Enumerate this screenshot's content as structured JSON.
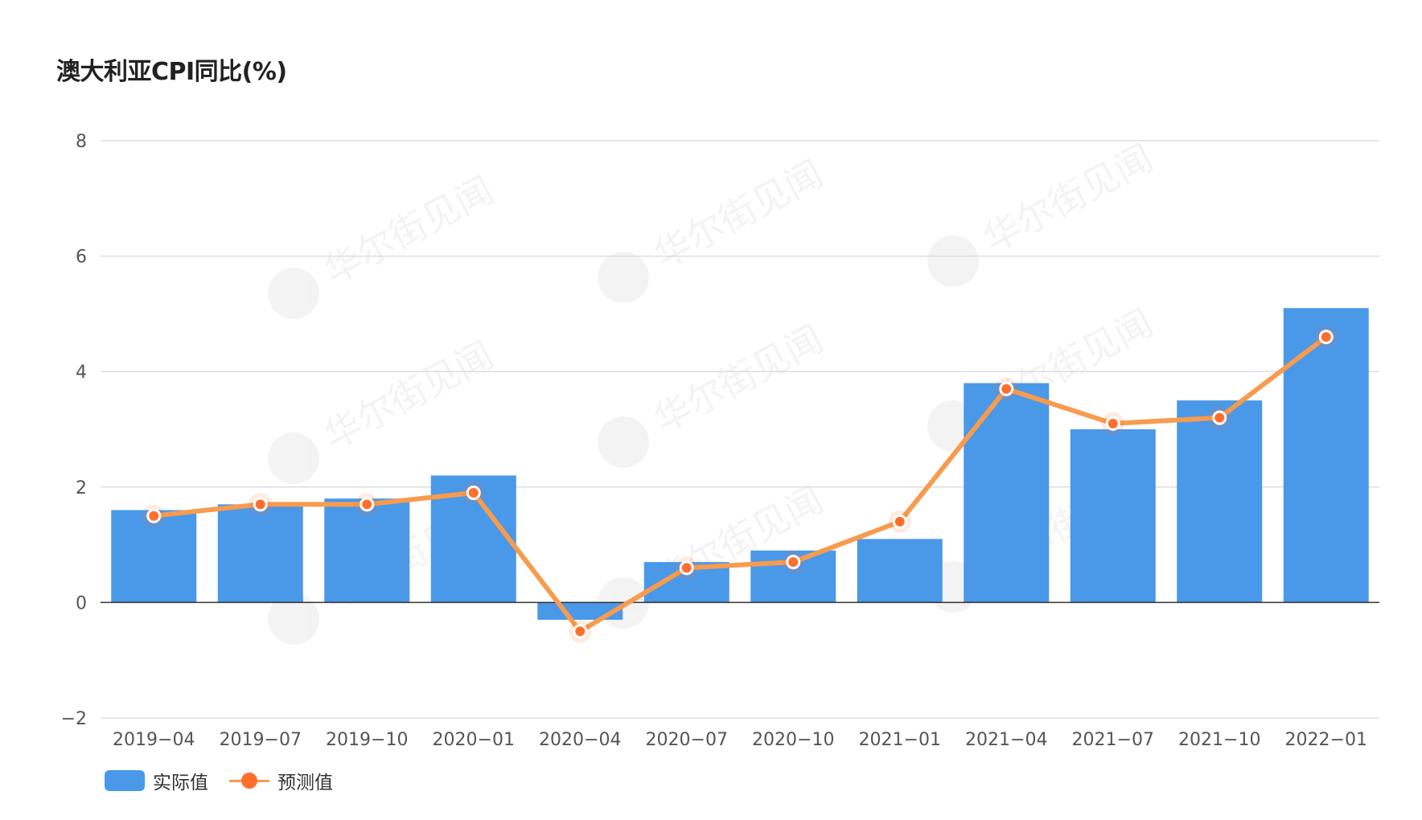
{
  "title": "澳大利亚CPI同比(%)",
  "watermark": "华尔街见闻",
  "colors": {
    "bar": "#4A98E8",
    "line": "#F79B4E",
    "dot": "#FF6F2C",
    "grid": "#DDDDDD",
    "axis": "#333333"
  },
  "chart_data": {
    "type": "bar",
    "categories": [
      "2019-04",
      "2019-07",
      "2019-10",
      "2020-01",
      "2020-04",
      "2020-07",
      "2020-10",
      "2021-01",
      "2021-04",
      "2021-07",
      "2021-10",
      "2022-01"
    ],
    "series": [
      {
        "name": "实际值",
        "type": "bar",
        "values": [
          1.6,
          1.7,
          1.8,
          2.2,
          -0.3,
          0.7,
          0.9,
          1.1,
          3.8,
          3.0,
          3.5,
          5.1
        ]
      },
      {
        "name": "预测值",
        "type": "line",
        "values": [
          1.5,
          1.7,
          1.7,
          1.9,
          -0.5,
          0.6,
          0.7,
          1.4,
          3.7,
          3.1,
          3.2,
          4.6
        ]
      }
    ],
    "ylim": [
      -2,
      8
    ],
    "yticks": [
      -2,
      0,
      2,
      4,
      6,
      8
    ],
    "ytick_labels": [
      "−2",
      "0",
      "2",
      "4",
      "6",
      "8"
    ],
    "xtick_labels": [
      "2019−04",
      "2019−07",
      "2019−10",
      "2020−01",
      "2020−04",
      "2020−07",
      "2020−10",
      "2021−01",
      "2021−04",
      "2021−07",
      "2021−10",
      "2022−01"
    ],
    "grid": true,
    "legend_position": "bottom-left"
  },
  "legend": [
    {
      "label": "实际值",
      "kind": "bar"
    },
    {
      "label": "预测值",
      "kind": "line"
    }
  ]
}
